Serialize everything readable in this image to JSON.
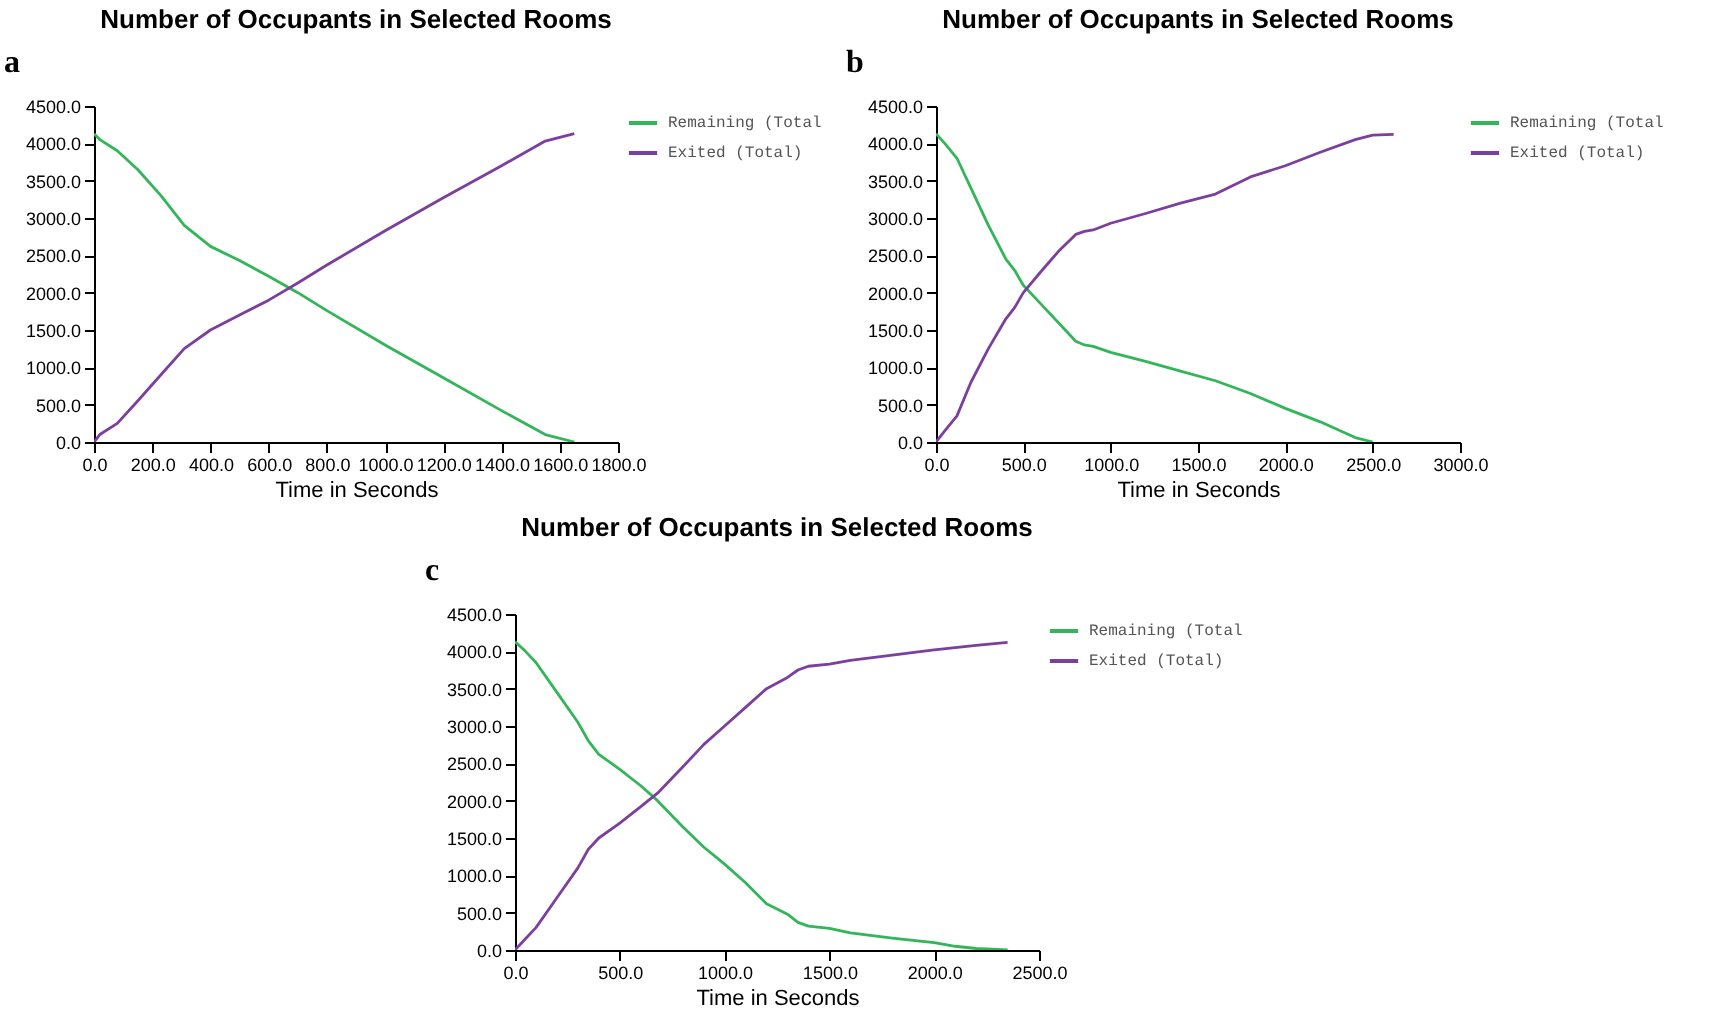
{
  "chart_data": [
    {
      "type": "line",
      "title": "Number of Occupants in Selected Rooms",
      "xlabel": "Time in Seconds",
      "annotations": [
        "a"
      ],
      "legend": "top right",
      "grid": false,
      "line_style": "solid",
      "marker": "none",
      "xlim": [
        0,
        1800
      ],
      "xticks": [
        {
          "value": 0,
          "label": "0.0"
        },
        {
          "value": 200,
          "label": "200.0"
        },
        {
          "value": 400,
          "label": "400.0"
        },
        {
          "value": 600,
          "label": "600.0"
        },
        {
          "value": 800,
          "label": "800.0"
        },
        {
          "value": 1000,
          "label": "1000.0"
        },
        {
          "value": 1200,
          "label": "1200.0"
        },
        {
          "value": 1400,
          "label": "1400.0"
        },
        {
          "value": 1600,
          "label": "1600.0"
        },
        {
          "value": 1800,
          "label": "1800.0"
        }
      ],
      "ylim": [
        0,
        4500
      ],
      "yticks": [
        {
          "value": 0,
          "label": "0.0"
        },
        {
          "value": 500,
          "label": "500.0"
        },
        {
          "value": 1000,
          "label": "1000.0"
        },
        {
          "value": 1500,
          "label": "1500.0"
        },
        {
          "value": 2000,
          "label": "2000.0"
        },
        {
          "value": 2500,
          "label": "2500.0"
        },
        {
          "value": 3000,
          "label": "3000.0"
        },
        {
          "value": 3500,
          "label": "3500.0"
        },
        {
          "value": 4000,
          "label": "4000.0"
        },
        {
          "value": 4500,
          "label": "4500.0"
        }
      ],
      "series": [
        {
          "name": "Remaining (Total",
          "color": "#33b55a",
          "x": [
            0,
            20,
            80,
            150,
            230,
            310,
            400,
            500,
            600,
            700,
            800,
            1000,
            1200,
            1400,
            1550,
            1650
          ],
          "values": [
            4130,
            4050,
            3900,
            3650,
            3300,
            2900,
            2620,
            2430,
            2220,
            2000,
            1760,
            1300,
            860,
            420,
            100,
            0
          ]
        },
        {
          "name": "Exited (Total)",
          "color": "#7b3f9e",
          "x": [
            0,
            20,
            80,
            150,
            230,
            310,
            400,
            500,
            600,
            700,
            800,
            1000,
            1200,
            1400,
            1550,
            1650
          ],
          "values": [
            0,
            100,
            250,
            550,
            900,
            1250,
            1500,
            1700,
            1900,
            2130,
            2370,
            2830,
            3270,
            3700,
            4030,
            4130
          ]
        }
      ]
    },
    {
      "type": "line",
      "title": "Number of Occupants in Selected Rooms",
      "xlabel": "Time in Seconds",
      "annotations": [
        "b"
      ],
      "legend": "top right",
      "grid": false,
      "line_style": "solid",
      "marker": "none",
      "xlim": [
        0,
        3000
      ],
      "xticks": [
        {
          "value": 0,
          "label": "0.0"
        },
        {
          "value": 500,
          "label": "500.0"
        },
        {
          "value": 1000,
          "label": "1000.0"
        },
        {
          "value": 1500,
          "label": "1500.0"
        },
        {
          "value": 2000,
          "label": "2000.0"
        },
        {
          "value": 2500,
          "label": "2500.0"
        },
        {
          "value": 3000,
          "label": "3000.0"
        }
      ],
      "ylim": [
        0,
        4500
      ],
      "yticks": [
        {
          "value": 0,
          "label": "0.0"
        },
        {
          "value": 500,
          "label": "500.0"
        },
        {
          "value": 1000,
          "label": "1000.0"
        },
        {
          "value": 1500,
          "label": "1500.0"
        },
        {
          "value": 2000,
          "label": "2000.0"
        },
        {
          "value": 2500,
          "label": "2500.0"
        },
        {
          "value": 3000,
          "label": "3000.0"
        },
        {
          "value": 3500,
          "label": "3500.0"
        },
        {
          "value": 4000,
          "label": "4000.0"
        },
        {
          "value": 4500,
          "label": "4500.0"
        }
      ],
      "series": [
        {
          "name": "Remaining (Total",
          "color": "#33b55a",
          "x": [
            0,
            50,
            120,
            200,
            300,
            400,
            450,
            500,
            600,
            700,
            800,
            850,
            900,
            1000,
            1200,
            1400,
            1600,
            1800,
            2000,
            2200,
            2400,
            2500
          ],
          "values": [
            4130,
            4000,
            3800,
            3400,
            2900,
            2450,
            2300,
            2100,
            1850,
            1600,
            1350,
            1300,
            1280,
            1200,
            1080,
            950,
            820,
            650,
            450,
            270,
            60,
            0
          ]
        },
        {
          "name": "Exited (Total)",
          "color": "#7b3f9e",
          "x": [
            0,
            50,
            120,
            200,
            300,
            400,
            450,
            500,
            600,
            700,
            800,
            850,
            900,
            1000,
            1200,
            1400,
            1600,
            1800,
            2000,
            2200,
            2400,
            2500,
            2620
          ],
          "values": [
            0,
            150,
            350,
            800,
            1250,
            1650,
            1800,
            2000,
            2280,
            2550,
            2780,
            2820,
            2840,
            2930,
            3060,
            3200,
            3320,
            3550,
            3700,
            3880,
            4050,
            4110,
            4120
          ]
        }
      ]
    },
    {
      "type": "line",
      "title": "Number of Occupants in Selected Rooms",
      "xlabel": "Time in Seconds",
      "annotations": [
        "c"
      ],
      "legend": "top right",
      "grid": false,
      "line_style": "solid",
      "marker": "none",
      "xlim": [
        0,
        2500
      ],
      "xticks": [
        {
          "value": 0,
          "label": "0.0"
        },
        {
          "value": 500,
          "label": "500.0"
        },
        {
          "value": 1000,
          "label": "1000.0"
        },
        {
          "value": 1500,
          "label": "1500.0"
        },
        {
          "value": 2000,
          "label": "2000.0"
        },
        {
          "value": 2500,
          "label": "2500.0"
        }
      ],
      "ylim": [
        0,
        4500
      ],
      "yticks": [
        {
          "value": 0,
          "label": "0.0"
        },
        {
          "value": 500,
          "label": "500.0"
        },
        {
          "value": 1000,
          "label": "1000.0"
        },
        {
          "value": 1500,
          "label": "1500.0"
        },
        {
          "value": 2000,
          "label": "2000.0"
        },
        {
          "value": 2500,
          "label": "2500.0"
        },
        {
          "value": 3000,
          "label": "3000.0"
        },
        {
          "value": 3500,
          "label": "3500.0"
        },
        {
          "value": 4000,
          "label": "4000.0"
        },
        {
          "value": 4500,
          "label": "4500.0"
        }
      ],
      "series": [
        {
          "name": "Remaining (Total",
          "color": "#33b55a",
          "x": [
            0,
            50,
            100,
            200,
            300,
            350,
            400,
            500,
            600,
            680,
            800,
            900,
            1000,
            1100,
            1200,
            1300,
            1350,
            1400,
            1500,
            1600,
            1800,
            2000,
            2100,
            2200,
            2350
          ],
          "values": [
            4130,
            4000,
            3850,
            3450,
            3050,
            2800,
            2620,
            2420,
            2200,
            2000,
            1650,
            1380,
            1150,
            900,
            620,
            480,
            370,
            320,
            290,
            230,
            160,
            100,
            50,
            20,
            0
          ]
        },
        {
          "name": "Exited (Total)",
          "color": "#7b3f9e",
          "x": [
            0,
            50,
            100,
            200,
            300,
            350,
            400,
            500,
            600,
            680,
            800,
            900,
            1000,
            1100,
            1200,
            1300,
            1350,
            1400,
            1500,
            1600,
            1800,
            2000,
            2200,
            2350
          ],
          "values": [
            0,
            150,
            300,
            700,
            1100,
            1350,
            1500,
            1700,
            1920,
            2100,
            2450,
            2750,
            3000,
            3250,
            3500,
            3650,
            3750,
            3800,
            3830,
            3880,
            3950,
            4020,
            4080,
            4120
          ]
        }
      ]
    }
  ]
}
